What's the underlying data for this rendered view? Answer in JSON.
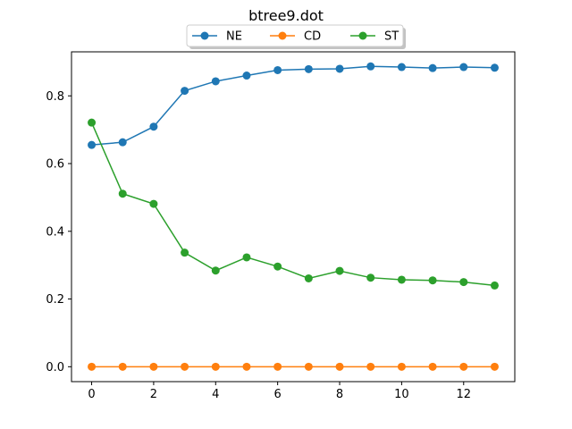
{
  "chart_data": {
    "type": "line",
    "title": "btree9.dot",
    "xlabel": "",
    "ylabel": "",
    "x": [
      0,
      1,
      2,
      3,
      4,
      5,
      6,
      7,
      8,
      9,
      10,
      11,
      12,
      13
    ],
    "xlim": [
      -0.65,
      13.65
    ],
    "ylim": [
      -0.044,
      0.93
    ],
    "xticks": [
      0,
      2,
      4,
      6,
      8,
      10,
      12
    ],
    "yticks": [
      0.0,
      0.2,
      0.4,
      0.6,
      0.8
    ],
    "xtick_labels": [
      "0",
      "2",
      "4",
      "6",
      "8",
      "10",
      "12"
    ],
    "ytick_labels": [
      "0.0",
      "0.2",
      "0.4",
      "0.6",
      "0.8"
    ],
    "grid": false,
    "legend_placement": "top-center",
    "series": [
      {
        "name": "NE",
        "color": "#1f77b4",
        "values": [
          0.655,
          0.663,
          0.709,
          0.815,
          0.843,
          0.86,
          0.876,
          0.879,
          0.88,
          0.887,
          0.885,
          0.882,
          0.885,
          0.883
        ]
      },
      {
        "name": "CD",
        "color": "#ff7f0e",
        "values": [
          0.0,
          0.0,
          0.0,
          0.0,
          0.0,
          0.0,
          0.0,
          0.0,
          0.0,
          0.0,
          0.0,
          0.0,
          0.0,
          0.0
        ]
      },
      {
        "name": "ST",
        "color": "#2ca02c",
        "values": [
          0.721,
          0.511,
          0.481,
          0.337,
          0.284,
          0.323,
          0.296,
          0.261,
          0.283,
          0.263,
          0.257,
          0.255,
          0.25,
          0.24
        ]
      }
    ]
  }
}
